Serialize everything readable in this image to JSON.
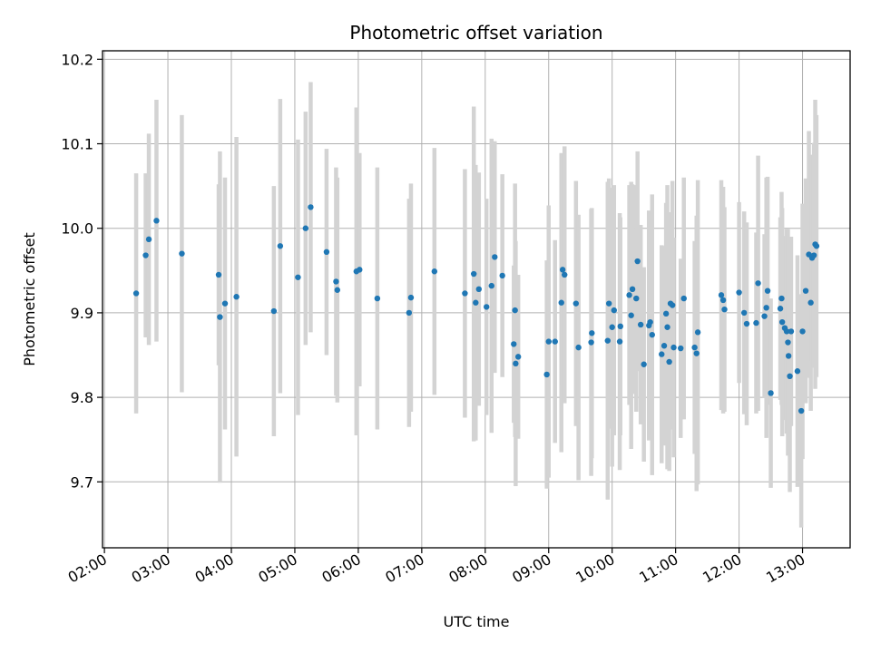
{
  "chart_data": {
    "type": "scatter",
    "title": "Photometric offset variation",
    "xlabel": "UTC time",
    "ylabel": "Photometric offset",
    "x_ticks": [
      "02:00",
      "03:00",
      "04:00",
      "05:00",
      "06:00",
      "07:00",
      "08:00",
      "09:00",
      "10:00",
      "11:00",
      "12:00",
      "13:00"
    ],
    "y_ticks": [
      "9.7",
      "9.8",
      "9.9",
      "10.0",
      "10.1",
      "10.2"
    ],
    "x_unit": "hours UTC",
    "xlim": [
      1.97,
      13.75
    ],
    "ylim": [
      9.622,
      10.21
    ],
    "grid": true,
    "colors": {
      "point": "#1f77b4",
      "errorbar": "#d3d3d3",
      "grid": "#b0b0b0"
    },
    "series": [
      {
        "points": [
          {
            "x": 2.5,
            "y": 9.923,
            "err": 0.142
          },
          {
            "x": 2.65,
            "y": 9.968,
            "err": 0.097
          },
          {
            "x": 2.7,
            "y": 9.987,
            "err": 0.125
          },
          {
            "x": 2.82,
            "y": 10.009,
            "err": 0.143
          },
          {
            "x": 3.22,
            "y": 9.97,
            "err": 0.164
          },
          {
            "x": 3.8,
            "y": 9.945,
            "err": 0.107
          },
          {
            "x": 3.82,
            "y": 9.895,
            "err": 0.196
          },
          {
            "x": 3.9,
            "y": 9.911,
            "err": 0.149
          },
          {
            "x": 4.08,
            "y": 9.919,
            "err": 0.189
          },
          {
            "x": 4.67,
            "y": 9.902,
            "err": 0.148
          },
          {
            "x": 4.77,
            "y": 9.979,
            "err": 0.174
          },
          {
            "x": 5.05,
            "y": 9.942,
            "err": 0.163
          },
          {
            "x": 5.17,
            "y": 10.0,
            "err": 0.138
          },
          {
            "x": 5.25,
            "y": 10.025,
            "err": 0.148
          },
          {
            "x": 5.5,
            "y": 9.972,
            "err": 0.122
          },
          {
            "x": 5.65,
            "y": 9.937,
            "err": 0.135
          },
          {
            "x": 5.67,
            "y": 9.927,
            "err": 0.133
          },
          {
            "x": 5.97,
            "y": 9.949,
            "err": 0.194
          },
          {
            "x": 6.02,
            "y": 9.951,
            "err": 0.138
          },
          {
            "x": 6.3,
            "y": 9.917,
            "err": 0.155
          },
          {
            "x": 6.8,
            "y": 9.9,
            "err": 0.135
          },
          {
            "x": 6.83,
            "y": 9.918,
            "err": 0.135
          },
          {
            "x": 7.2,
            "y": 9.949,
            "err": 0.146
          },
          {
            "x": 7.68,
            "y": 9.923,
            "err": 0.147
          },
          {
            "x": 7.82,
            "y": 9.946,
            "err": 0.198
          },
          {
            "x": 7.85,
            "y": 9.912,
            "err": 0.163
          },
          {
            "x": 7.9,
            "y": 9.928,
            "err": 0.138
          },
          {
            "x": 8.02,
            "y": 9.907,
            "err": 0.128
          },
          {
            "x": 8.1,
            "y": 9.932,
            "err": 0.174
          },
          {
            "x": 8.15,
            "y": 9.966,
            "err": 0.137
          },
          {
            "x": 8.27,
            "y": 9.944,
            "err": 0.12
          },
          {
            "x": 8.45,
            "y": 9.863,
            "err": 0.093
          },
          {
            "x": 8.47,
            "y": 9.903,
            "err": 0.15
          },
          {
            "x": 8.48,
            "y": 9.84,
            "err": 0.145
          },
          {
            "x": 8.52,
            "y": 9.848,
            "err": 0.097
          },
          {
            "x": 8.97,
            "y": 9.827,
            "err": 0.135
          },
          {
            "x": 9.0,
            "y": 9.866,
            "err": 0.161
          },
          {
            "x": 9.1,
            "y": 9.866,
            "err": 0.12
          },
          {
            "x": 9.2,
            "y": 9.912,
            "err": 0.177
          },
          {
            "x": 9.22,
            "y": 9.951,
            "err": 0.136
          },
          {
            "x": 9.25,
            "y": 9.945,
            "err": 0.152
          },
          {
            "x": 9.43,
            "y": 9.911,
            "err": 0.145
          },
          {
            "x": 9.47,
            "y": 9.859,
            "err": 0.157
          },
          {
            "x": 9.67,
            "y": 9.865,
            "err": 0.158
          },
          {
            "x": 9.68,
            "y": 9.876,
            "err": 0.148
          },
          {
            "x": 9.93,
            "y": 9.867,
            "err": 0.188
          },
          {
            "x": 9.95,
            "y": 9.911,
            "err": 0.148
          },
          {
            "x": 10.0,
            "y": 9.883,
            "err": 0.165
          },
          {
            "x": 10.03,
            "y": 9.903,
            "err": 0.148
          },
          {
            "x": 10.12,
            "y": 9.866,
            "err": 0.152
          },
          {
            "x": 10.13,
            "y": 9.884,
            "err": 0.129
          },
          {
            "x": 10.27,
            "y": 9.921,
            "err": 0.13
          },
          {
            "x": 10.3,
            "y": 9.897,
            "err": 0.158
          },
          {
            "x": 10.32,
            "y": 9.928,
            "err": 0.124
          },
          {
            "x": 10.38,
            "y": 9.917,
            "err": 0.134
          },
          {
            "x": 10.4,
            "y": 9.961,
            "err": 0.13
          },
          {
            "x": 10.45,
            "y": 9.886,
            "err": 0.118
          },
          {
            "x": 10.5,
            "y": 9.839,
            "err": 0.115
          },
          {
            "x": 10.58,
            "y": 9.885,
            "err": 0.136
          },
          {
            "x": 10.6,
            "y": 9.889,
            "err": 0.128
          },
          {
            "x": 10.63,
            "y": 9.874,
            "err": 0.166
          },
          {
            "x": 10.78,
            "y": 9.851,
            "err": 0.129
          },
          {
            "x": 10.82,
            "y": 9.861,
            "err": 0.118
          },
          {
            "x": 10.85,
            "y": 9.899,
            "err": 0.131
          },
          {
            "x": 10.87,
            "y": 9.883,
            "err": 0.168
          },
          {
            "x": 10.9,
            "y": 9.842,
            "err": 0.129
          },
          {
            "x": 10.92,
            "y": 9.911,
            "err": 0.108
          },
          {
            "x": 10.95,
            "y": 9.909,
            "err": 0.147
          },
          {
            "x": 10.97,
            "y": 9.859,
            "err": 0.13
          },
          {
            "x": 11.08,
            "y": 9.858,
            "err": 0.106
          },
          {
            "x": 11.13,
            "y": 9.917,
            "err": 0.143
          },
          {
            "x": 11.3,
            "y": 9.859,
            "err": 0.126
          },
          {
            "x": 11.33,
            "y": 9.852,
            "err": 0.163
          },
          {
            "x": 11.35,
            "y": 9.877,
            "err": 0.18
          },
          {
            "x": 11.72,
            "y": 9.921,
            "err": 0.136
          },
          {
            "x": 11.75,
            "y": 9.915,
            "err": 0.134
          },
          {
            "x": 11.77,
            "y": 9.904,
            "err": 0.121
          },
          {
            "x": 12.0,
            "y": 9.924,
            "err": 0.107
          },
          {
            "x": 12.08,
            "y": 9.9,
            "err": 0.12
          },
          {
            "x": 12.12,
            "y": 9.887,
            "err": 0.12
          },
          {
            "x": 12.27,
            "y": 9.888,
            "err": 0.107
          },
          {
            "x": 12.3,
            "y": 9.935,
            "err": 0.151
          },
          {
            "x": 12.4,
            "y": 9.896,
            "err": 0.097
          },
          {
            "x": 12.43,
            "y": 9.906,
            "err": 0.154
          },
          {
            "x": 12.45,
            "y": 9.926,
            "err": 0.135
          },
          {
            "x": 12.5,
            "y": 9.805,
            "err": 0.112
          },
          {
            "x": 12.65,
            "y": 9.905,
            "err": 0.108
          },
          {
            "x": 12.67,
            "y": 9.917,
            "err": 0.126
          },
          {
            "x": 12.68,
            "y": 9.889,
            "err": 0.135
          },
          {
            "x": 12.72,
            "y": 9.882,
            "err": 0.109
          },
          {
            "x": 12.75,
            "y": 9.878,
            "err": 0.121
          },
          {
            "x": 12.77,
            "y": 9.865,
            "err": 0.134
          },
          {
            "x": 12.78,
            "y": 9.849,
            "err": 0.11
          },
          {
            "x": 12.8,
            "y": 9.825,
            "err": 0.137
          },
          {
            "x": 12.82,
            "y": 9.878,
            "err": 0.112
          },
          {
            "x": 12.92,
            "y": 9.831,
            "err": 0.137
          },
          {
            "x": 12.98,
            "y": 9.784,
            "err": 0.138
          },
          {
            "x": 13.0,
            "y": 9.878,
            "err": 0.151
          },
          {
            "x": 13.05,
            "y": 9.926,
            "err": 0.133
          },
          {
            "x": 13.1,
            "y": 9.969,
            "err": 0.146
          },
          {
            "x": 13.13,
            "y": 9.912,
            "err": 0.128
          },
          {
            "x": 13.15,
            "y": 9.965,
            "err": 0.122
          },
          {
            "x": 13.18,
            "y": 9.968,
            "err": 0.133
          },
          {
            "x": 13.2,
            "y": 9.981,
            "err": 0.171
          },
          {
            "x": 13.22,
            "y": 9.979,
            "err": 0.155
          }
        ]
      }
    ]
  }
}
